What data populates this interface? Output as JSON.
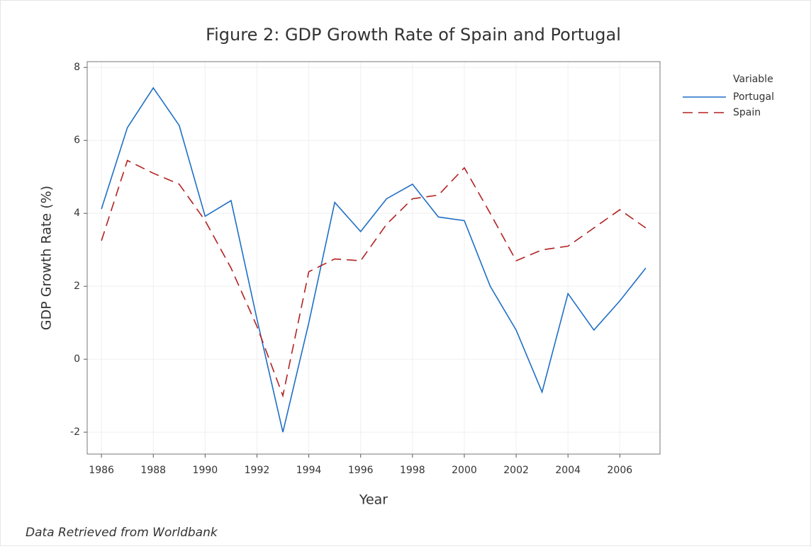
{
  "chart_data": {
    "type": "line",
    "title": "Figure 2: GDP Growth Rate of Spain and Portugal",
    "x_label": "Year",
    "y_label": "GDP Growth Rate (%)",
    "caption": "Data Retrieved from Worldbank",
    "legend_title": "Variable",
    "legend": "outside-right",
    "grid": true,
    "x": [
      1986,
      1987,
      1988,
      1989,
      1990,
      1991,
      1992,
      1993,
      1994,
      1995,
      1996,
      1997,
      1998,
      1999,
      2000,
      2001,
      2002,
      2003,
      2004,
      2005,
      2006,
      2007
    ],
    "series": [
      {
        "name": "Portugal",
        "color": "#1f6fc5",
        "dash": "solid",
        "values": [
          4.12,
          6.35,
          7.44,
          6.41,
          3.92,
          4.35,
          1.1,
          -2.0,
          1.0,
          4.3,
          3.5,
          4.4,
          4.8,
          3.9,
          3.8,
          2.0,
          0.8,
          -0.9,
          1.8,
          0.8,
          1.6,
          2.5
        ]
      },
      {
        "name": "Spain",
        "color": "#b22222",
        "dash": "dashed",
        "values": [
          3.25,
          5.45,
          5.1,
          4.8,
          3.8,
          2.5,
          0.9,
          -1.0,
          2.4,
          2.75,
          2.7,
          3.7,
          4.4,
          4.5,
          5.25,
          4.0,
          2.7,
          3.0,
          3.1,
          3.6,
          4.1,
          3.6
        ]
      }
    ],
    "xlim": [
      1985.45,
      2007.55
    ],
    "ylim": [
      -2.6,
      8.16
    ],
    "xticks": [
      1986,
      1988,
      1990,
      1992,
      1994,
      1996,
      1998,
      2000,
      2002,
      2004,
      2006
    ],
    "yticks": [
      -2,
      0,
      2,
      4,
      6,
      8
    ]
  }
}
